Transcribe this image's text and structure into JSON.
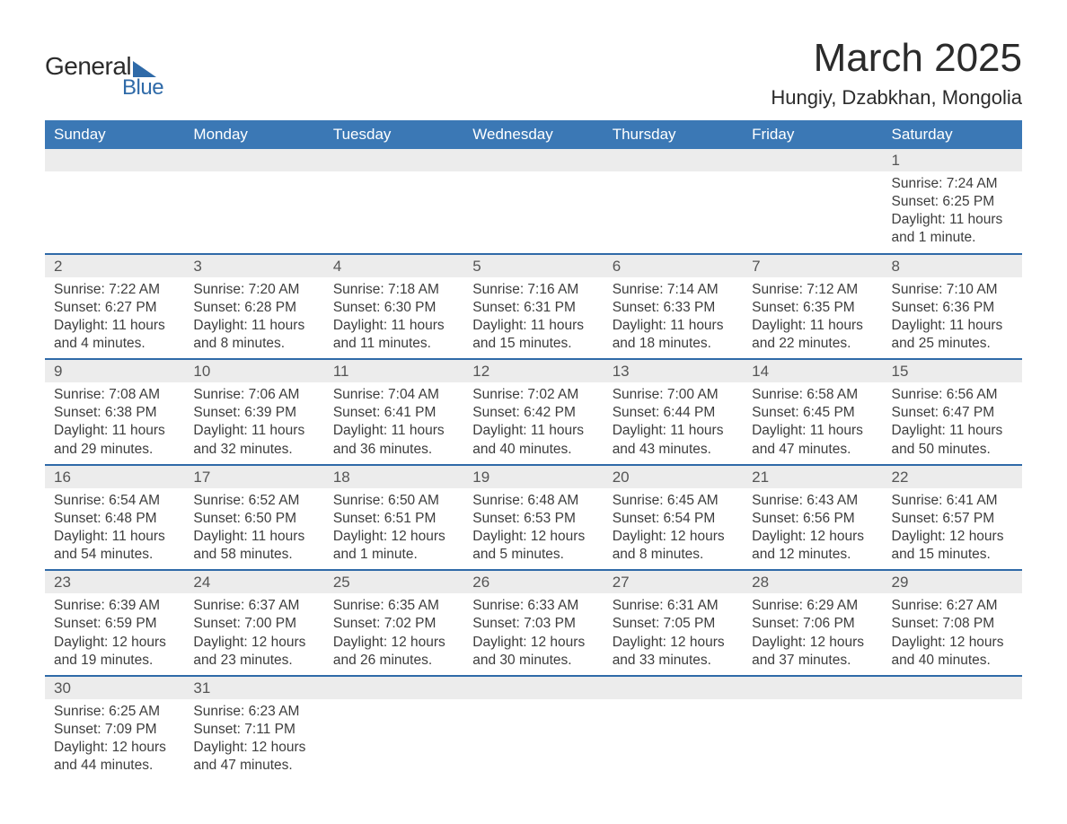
{
  "logo": {
    "text1": "General",
    "text2": "Blue"
  },
  "title": "March 2025",
  "location": "Hungiy, Dzabkhan, Mongolia",
  "colors": {
    "header_bg": "#3b78b5",
    "header_text": "#ffffff",
    "daynum_bg": "#ececec",
    "row_border": "#2f6aa8",
    "body_text": "#3d3d3d",
    "logo_accent": "#2f6aa8"
  },
  "day_headers": [
    "Sunday",
    "Monday",
    "Tuesday",
    "Wednesday",
    "Thursday",
    "Friday",
    "Saturday"
  ],
  "weeks": [
    {
      "nums": [
        "",
        "",
        "",
        "",
        "",
        "",
        "1"
      ],
      "cells": [
        null,
        null,
        null,
        null,
        null,
        null,
        {
          "sunrise": "Sunrise: 7:24 AM",
          "sunset": "Sunset: 6:25 PM",
          "daylight": "Daylight: 11 hours and 1 minute."
        }
      ]
    },
    {
      "nums": [
        "2",
        "3",
        "4",
        "5",
        "6",
        "7",
        "8"
      ],
      "cells": [
        {
          "sunrise": "Sunrise: 7:22 AM",
          "sunset": "Sunset: 6:27 PM",
          "daylight": "Daylight: 11 hours and 4 minutes."
        },
        {
          "sunrise": "Sunrise: 7:20 AM",
          "sunset": "Sunset: 6:28 PM",
          "daylight": "Daylight: 11 hours and 8 minutes."
        },
        {
          "sunrise": "Sunrise: 7:18 AM",
          "sunset": "Sunset: 6:30 PM",
          "daylight": "Daylight: 11 hours and 11 minutes."
        },
        {
          "sunrise": "Sunrise: 7:16 AM",
          "sunset": "Sunset: 6:31 PM",
          "daylight": "Daylight: 11 hours and 15 minutes."
        },
        {
          "sunrise": "Sunrise: 7:14 AM",
          "sunset": "Sunset: 6:33 PM",
          "daylight": "Daylight: 11 hours and 18 minutes."
        },
        {
          "sunrise": "Sunrise: 7:12 AM",
          "sunset": "Sunset: 6:35 PM",
          "daylight": "Daylight: 11 hours and 22 minutes."
        },
        {
          "sunrise": "Sunrise: 7:10 AM",
          "sunset": "Sunset: 6:36 PM",
          "daylight": "Daylight: 11 hours and 25 minutes."
        }
      ]
    },
    {
      "nums": [
        "9",
        "10",
        "11",
        "12",
        "13",
        "14",
        "15"
      ],
      "cells": [
        {
          "sunrise": "Sunrise: 7:08 AM",
          "sunset": "Sunset: 6:38 PM",
          "daylight": "Daylight: 11 hours and 29 minutes."
        },
        {
          "sunrise": "Sunrise: 7:06 AM",
          "sunset": "Sunset: 6:39 PM",
          "daylight": "Daylight: 11 hours and 32 minutes."
        },
        {
          "sunrise": "Sunrise: 7:04 AM",
          "sunset": "Sunset: 6:41 PM",
          "daylight": "Daylight: 11 hours and 36 minutes."
        },
        {
          "sunrise": "Sunrise: 7:02 AM",
          "sunset": "Sunset: 6:42 PM",
          "daylight": "Daylight: 11 hours and 40 minutes."
        },
        {
          "sunrise": "Sunrise: 7:00 AM",
          "sunset": "Sunset: 6:44 PM",
          "daylight": "Daylight: 11 hours and 43 minutes."
        },
        {
          "sunrise": "Sunrise: 6:58 AM",
          "sunset": "Sunset: 6:45 PM",
          "daylight": "Daylight: 11 hours and 47 minutes."
        },
        {
          "sunrise": "Sunrise: 6:56 AM",
          "sunset": "Sunset: 6:47 PM",
          "daylight": "Daylight: 11 hours and 50 minutes."
        }
      ]
    },
    {
      "nums": [
        "16",
        "17",
        "18",
        "19",
        "20",
        "21",
        "22"
      ],
      "cells": [
        {
          "sunrise": "Sunrise: 6:54 AM",
          "sunset": "Sunset: 6:48 PM",
          "daylight": "Daylight: 11 hours and 54 minutes."
        },
        {
          "sunrise": "Sunrise: 6:52 AM",
          "sunset": "Sunset: 6:50 PM",
          "daylight": "Daylight: 11 hours and 58 minutes."
        },
        {
          "sunrise": "Sunrise: 6:50 AM",
          "sunset": "Sunset: 6:51 PM",
          "daylight": "Daylight: 12 hours and 1 minute."
        },
        {
          "sunrise": "Sunrise: 6:48 AM",
          "sunset": "Sunset: 6:53 PM",
          "daylight": "Daylight: 12 hours and 5 minutes."
        },
        {
          "sunrise": "Sunrise: 6:45 AM",
          "sunset": "Sunset: 6:54 PM",
          "daylight": "Daylight: 12 hours and 8 minutes."
        },
        {
          "sunrise": "Sunrise: 6:43 AM",
          "sunset": "Sunset: 6:56 PM",
          "daylight": "Daylight: 12 hours and 12 minutes."
        },
        {
          "sunrise": "Sunrise: 6:41 AM",
          "sunset": "Sunset: 6:57 PM",
          "daylight": "Daylight: 12 hours and 15 minutes."
        }
      ]
    },
    {
      "nums": [
        "23",
        "24",
        "25",
        "26",
        "27",
        "28",
        "29"
      ],
      "cells": [
        {
          "sunrise": "Sunrise: 6:39 AM",
          "sunset": "Sunset: 6:59 PM",
          "daylight": "Daylight: 12 hours and 19 minutes."
        },
        {
          "sunrise": "Sunrise: 6:37 AM",
          "sunset": "Sunset: 7:00 PM",
          "daylight": "Daylight: 12 hours and 23 minutes."
        },
        {
          "sunrise": "Sunrise: 6:35 AM",
          "sunset": "Sunset: 7:02 PM",
          "daylight": "Daylight: 12 hours and 26 minutes."
        },
        {
          "sunrise": "Sunrise: 6:33 AM",
          "sunset": "Sunset: 7:03 PM",
          "daylight": "Daylight: 12 hours and 30 minutes."
        },
        {
          "sunrise": "Sunrise: 6:31 AM",
          "sunset": "Sunset: 7:05 PM",
          "daylight": "Daylight: 12 hours and 33 minutes."
        },
        {
          "sunrise": "Sunrise: 6:29 AM",
          "sunset": "Sunset: 7:06 PM",
          "daylight": "Daylight: 12 hours and 37 minutes."
        },
        {
          "sunrise": "Sunrise: 6:27 AM",
          "sunset": "Sunset: 7:08 PM",
          "daylight": "Daylight: 12 hours and 40 minutes."
        }
      ]
    },
    {
      "nums": [
        "30",
        "31",
        "",
        "",
        "",
        "",
        ""
      ],
      "cells": [
        {
          "sunrise": "Sunrise: 6:25 AM",
          "sunset": "Sunset: 7:09 PM",
          "daylight": "Daylight: 12 hours and 44 minutes."
        },
        {
          "sunrise": "Sunrise: 6:23 AM",
          "sunset": "Sunset: 7:11 PM",
          "daylight": "Daylight: 12 hours and 47 minutes."
        },
        null,
        null,
        null,
        null,
        null
      ]
    }
  ]
}
